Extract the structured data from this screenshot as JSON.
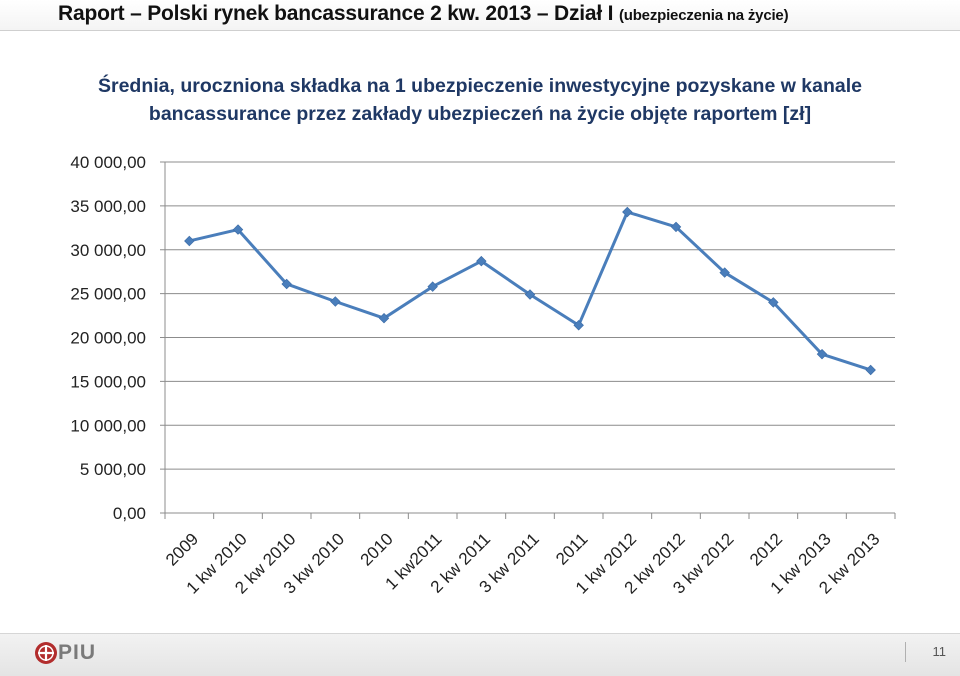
{
  "header": {
    "title_main": "Raport – Polski rynek bancassurance 2 kw. 2013 – Dział I",
    "title_sub": "(ubezpieczenia na życie)"
  },
  "chart_data": {
    "type": "line",
    "title": "Średnia, uroczniona składka na 1 ubezpieczenie inwestycyjne pozyskane w kanale bancassurance przez zakłady ubezpieczeń na życie objęte raportem [zł]",
    "xlabel": "",
    "ylabel": "",
    "categories": [
      "2009",
      "1 kw 2010",
      "2 kw 2010",
      "3 kw 2010",
      "2010",
      "1 kw2011",
      "2 kw 2011",
      "3 kw 2011",
      "2011",
      "1 kw 2012",
      "2 kw 2012",
      "3 kw 2012",
      "2012",
      "1 kw 2013",
      "2 kw 2013"
    ],
    "series": [
      {
        "values": [
          31000,
          32300,
          26100,
          24100,
          22200,
          25800,
          28700,
          24900,
          21400,
          34300,
          32600,
          27400,
          24000,
          18100,
          16300
        ],
        "color": "#4a7ebb"
      }
    ],
    "ylim": [
      0,
      40000
    ],
    "yticks": [
      0,
      5000,
      10000,
      15000,
      20000,
      25000,
      30000,
      35000,
      40000
    ],
    "ytick_labels": [
      "0,00",
      "5 000,00",
      "10 000,00",
      "15 000,00",
      "20 000,00",
      "25 000,00",
      "30 000,00",
      "35 000,00",
      "40 000,00"
    ],
    "grid": true,
    "legend": "none"
  },
  "footer": {
    "logo_text": "PIU",
    "page_number": "11"
  }
}
